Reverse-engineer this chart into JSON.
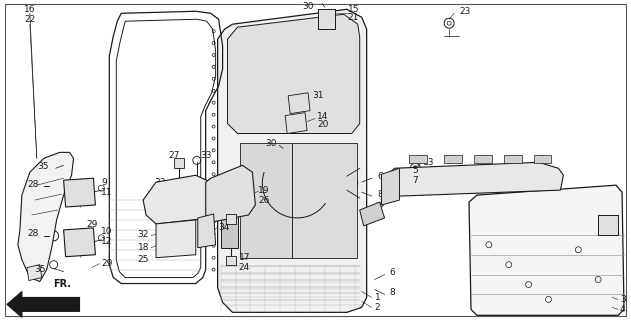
{
  "bg_color": "#ffffff",
  "line_color": "#1a1a1a",
  "fig_width": 6.31,
  "fig_height": 3.2,
  "dpi": 100
}
